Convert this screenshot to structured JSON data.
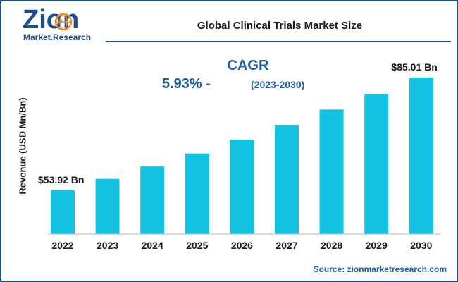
{
  "logo": {
    "name": "Zion",
    "tagline": "Market.Research"
  },
  "title": "Global Clinical Trials Market Size",
  "cagr": {
    "label": "CAGR",
    "value": "5.93% -",
    "period": "(2023-2030)"
  },
  "source": "Source: zionmarketresearch.com",
  "colors": {
    "bar": "#14c3e3",
    "accent": "#1f4e8c",
    "cagr_text": "#1f5fa0"
  },
  "chart_data": {
    "type": "bar",
    "categories": [
      "2022",
      "2023",
      "2024",
      "2025",
      "2026",
      "2027",
      "2028",
      "2029",
      "2030"
    ],
    "values": [
      53.92,
      57.1,
      60.5,
      64.1,
      67.9,
      71.9,
      76.2,
      80.5,
      85.01
    ],
    "ylabel": "Revenue (USD Mn/Bn)",
    "xlabel": "",
    "data_labels": [
      {
        "index": 0,
        "text": "$53.92 Bn"
      },
      {
        "index": 8,
        "text": "$85.01 Bn"
      }
    ],
    "grid": false,
    "legend": "none"
  }
}
